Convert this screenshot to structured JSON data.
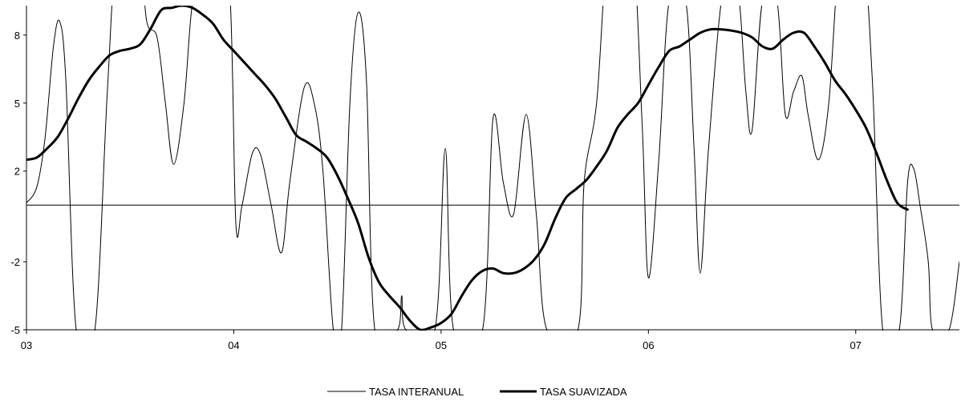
{
  "chart_data": {
    "type": "line",
    "title": "",
    "xlabel": "",
    "ylabel": "",
    "x_tick_labels": [
      "03",
      "04",
      "05",
      "06",
      "07"
    ],
    "y_tick_labels": [
      "8",
      "5",
      "2",
      "-2",
      "-5"
    ],
    "y_tick_values": [
      8,
      5,
      2,
      -2,
      -5
    ],
    "xlim": [
      3.0,
      7.5
    ],
    "ylim": [
      -5,
      9.3
    ],
    "zero_line": 0.5,
    "grid": false,
    "legend": "bottom-center",
    "series": [
      {
        "name": "TASA INTERANUAL",
        "color": "#000000",
        "weight": "thin",
        "points": [
          [
            3.0,
            0.6
          ],
          [
            3.05,
            1.3
          ],
          [
            3.09,
            3.5
          ],
          [
            3.13,
            7.5
          ],
          [
            3.16,
            8.6
          ],
          [
            3.19,
            6.0
          ],
          [
            3.24,
            -5.0
          ],
          [
            3.33,
            -5.0
          ],
          [
            3.39,
            5.5
          ],
          [
            3.44,
            12.0
          ],
          [
            3.54,
            12.0
          ],
          [
            3.58,
            8.6
          ],
          [
            3.63,
            7.9
          ],
          [
            3.67,
            5.0
          ],
          [
            3.71,
            2.3
          ],
          [
            3.76,
            5.0
          ],
          [
            3.81,
            10.0
          ],
          [
            3.91,
            12.0
          ],
          [
            3.98,
            10.0
          ],
          [
            4.01,
            -0.3
          ],
          [
            4.04,
            0.5
          ],
          [
            4.09,
            2.8
          ],
          [
            4.13,
            2.7
          ],
          [
            4.18,
            0.5
          ],
          [
            4.23,
            -1.6
          ],
          [
            4.27,
            1.5
          ],
          [
            4.34,
            5.7
          ],
          [
            4.39,
            4.9
          ],
          [
            4.43,
            2.0
          ],
          [
            4.48,
            -5.0
          ],
          [
            4.52,
            -5.0
          ],
          [
            4.56,
            5.0
          ],
          [
            4.6,
            9.0
          ],
          [
            4.64,
            6.0
          ],
          [
            4.68,
            -5.0
          ],
          [
            4.79,
            -5.0
          ],
          [
            4.81,
            -3.5
          ],
          [
            4.83,
            -5.0
          ],
          [
            4.97,
            -5.0
          ],
          [
            5.02,
            3.0
          ],
          [
            5.06,
            -5.0
          ],
          [
            5.2,
            -5.0
          ],
          [
            5.25,
            4.3
          ],
          [
            5.3,
            1.5
          ],
          [
            5.35,
            0.1
          ],
          [
            5.41,
            4.5
          ],
          [
            5.46,
            0.0
          ],
          [
            5.51,
            -5.0
          ],
          [
            5.66,
            -5.0
          ],
          [
            5.69,
            1.5
          ],
          [
            5.75,
            5.0
          ],
          [
            5.81,
            12.0
          ],
          [
            5.92,
            12.0
          ],
          [
            5.97,
            4.0
          ],
          [
            6.0,
            -2.7
          ],
          [
            6.05,
            2.5
          ],
          [
            6.1,
            9.5
          ],
          [
            6.18,
            9.5
          ],
          [
            6.22,
            3.0
          ],
          [
            6.25,
            -2.5
          ],
          [
            6.29,
            3.0
          ],
          [
            6.36,
            10.0
          ],
          [
            6.43,
            10.0
          ],
          [
            6.47,
            5.5
          ],
          [
            6.5,
            3.8
          ],
          [
            6.55,
            9.5
          ],
          [
            6.62,
            9.5
          ],
          [
            6.66,
            4.5
          ],
          [
            6.7,
            5.5
          ],
          [
            6.74,
            6.2
          ],
          [
            6.77,
            4.5
          ],
          [
            6.82,
            2.5
          ],
          [
            6.87,
            5.0
          ],
          [
            6.93,
            12.0
          ],
          [
            7.03,
            12.0
          ],
          [
            7.08,
            6.0
          ],
          [
            7.13,
            -5.0
          ],
          [
            7.21,
            -5.0
          ],
          [
            7.25,
            1.5
          ],
          [
            7.28,
            2.1
          ],
          [
            7.31,
            0.5
          ],
          [
            7.35,
            -2.0
          ],
          [
            7.37,
            -5.0
          ],
          [
            7.45,
            -5.0
          ],
          [
            7.5,
            -2.0
          ]
        ]
      },
      {
        "name": "TASA SUAVIZADA",
        "color": "#000000",
        "weight": "thick",
        "points": [
          [
            3.0,
            2.5
          ],
          [
            3.05,
            2.6
          ],
          [
            3.1,
            3.0
          ],
          [
            3.15,
            3.5
          ],
          [
            3.2,
            4.3
          ],
          [
            3.25,
            5.2
          ],
          [
            3.3,
            6.0
          ],
          [
            3.35,
            6.6
          ],
          [
            3.4,
            7.1
          ],
          [
            3.45,
            7.3
          ],
          [
            3.5,
            7.4
          ],
          [
            3.55,
            7.6
          ],
          [
            3.6,
            8.3
          ],
          [
            3.65,
            9.1
          ],
          [
            3.7,
            9.2
          ],
          [
            3.75,
            9.3
          ],
          [
            3.8,
            9.2
          ],
          [
            3.85,
            8.9
          ],
          [
            3.9,
            8.5
          ],
          [
            3.95,
            7.8
          ],
          [
            4.0,
            7.3
          ],
          [
            4.05,
            6.8
          ],
          [
            4.1,
            6.3
          ],
          [
            4.15,
            5.8
          ],
          [
            4.2,
            5.2
          ],
          [
            4.25,
            4.4
          ],
          [
            4.3,
            3.6
          ],
          [
            4.35,
            3.3
          ],
          [
            4.4,
            3.0
          ],
          [
            4.45,
            2.6
          ],
          [
            4.5,
            1.8
          ],
          [
            4.55,
            0.8
          ],
          [
            4.6,
            -0.3
          ],
          [
            4.65,
            -1.8
          ],
          [
            4.7,
            -2.9
          ],
          [
            4.75,
            -3.5
          ],
          [
            4.8,
            -4.0
          ],
          [
            4.85,
            -4.6
          ],
          [
            4.9,
            -5.0
          ],
          [
            4.95,
            -4.9
          ],
          [
            5.0,
            -4.7
          ],
          [
            5.05,
            -4.3
          ],
          [
            5.1,
            -3.5
          ],
          [
            5.15,
            -2.8
          ],
          [
            5.2,
            -2.4
          ],
          [
            5.25,
            -2.3
          ],
          [
            5.3,
            -2.5
          ],
          [
            5.35,
            -2.5
          ],
          [
            5.4,
            -2.3
          ],
          [
            5.45,
            -1.9
          ],
          [
            5.5,
            -1.2
          ],
          [
            5.55,
            -0.1
          ],
          [
            5.6,
            0.8
          ],
          [
            5.65,
            1.2
          ],
          [
            5.7,
            1.6
          ],
          [
            5.75,
            2.2
          ],
          [
            5.8,
            2.9
          ],
          [
            5.85,
            3.9
          ],
          [
            5.9,
            4.5
          ],
          [
            5.95,
            5.0
          ],
          [
            6.0,
            5.8
          ],
          [
            6.05,
            6.6
          ],
          [
            6.1,
            7.3
          ],
          [
            6.15,
            7.5
          ],
          [
            6.2,
            7.8
          ],
          [
            6.25,
            8.1
          ],
          [
            6.3,
            8.25
          ],
          [
            6.35,
            8.25
          ],
          [
            6.4,
            8.2
          ],
          [
            6.45,
            8.1
          ],
          [
            6.5,
            7.9
          ],
          [
            6.55,
            7.5
          ],
          [
            6.6,
            7.4
          ],
          [
            6.65,
            7.8
          ],
          [
            6.7,
            8.1
          ],
          [
            6.75,
            8.1
          ],
          [
            6.8,
            7.5
          ],
          [
            6.85,
            6.8
          ],
          [
            6.9,
            6.0
          ],
          [
            6.95,
            5.4
          ],
          [
            7.0,
            4.7
          ],
          [
            7.05,
            3.9
          ],
          [
            7.1,
            2.8
          ],
          [
            7.15,
            1.6
          ],
          [
            7.2,
            0.6
          ],
          [
            7.25,
            0.3
          ]
        ]
      }
    ]
  }
}
